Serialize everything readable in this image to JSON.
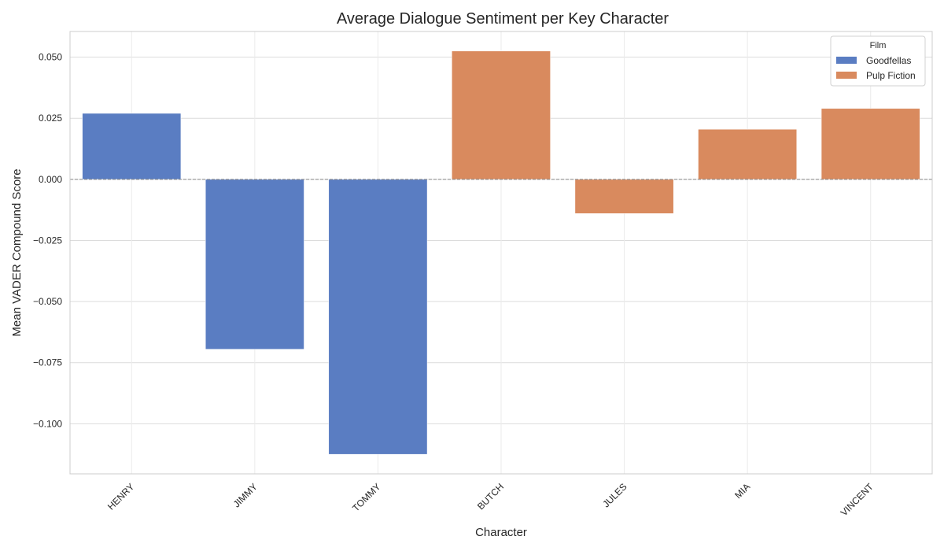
{
  "chart_data": {
    "type": "bar",
    "title": "Average Dialogue Sentiment per Key Character",
    "xlabel": "Character",
    "ylabel": "Mean VADER Compound Score",
    "categories": [
      "HENRY",
      "JIMMY",
      "TOMMY",
      "BUTCH",
      "JULES",
      "MIA",
      "VINCENT"
    ],
    "series": [
      {
        "name": "Goodfellas",
        "color": "#5a7dc2",
        "values": [
          0.027,
          -0.0695,
          -0.1125,
          null,
          null,
          null,
          null
        ]
      },
      {
        "name": "Pulp Fiction",
        "color": "#d98a5e",
        "values": [
          null,
          null,
          null,
          0.0525,
          -0.014,
          0.0205,
          0.029
        ]
      }
    ],
    "yticks": [
      -0.1,
      -0.075,
      -0.05,
      -0.025,
      0.0,
      0.025,
      0.05
    ],
    "ytick_labels": [
      "−0.100",
      "−0.075",
      "−0.050",
      "−0.025",
      "0.000",
      "0.025",
      "0.050"
    ],
    "ylim": [
      -0.1205,
      0.0605
    ],
    "grid": true,
    "zero_line": true,
    "legend_title": "Film",
    "legend_position": "top-right"
  }
}
